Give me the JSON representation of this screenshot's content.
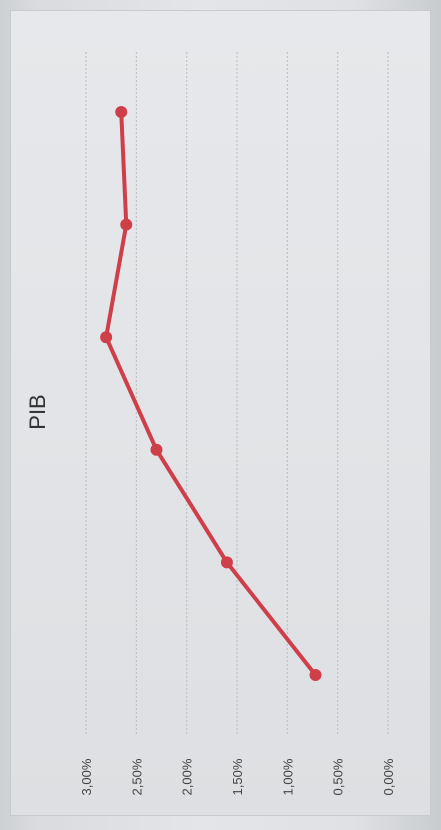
{
  "chart_data": {
    "type": "line",
    "orientation": "rotated-90-counterclockwise",
    "title": "PIB",
    "xlabel": "",
    "ylabel": "",
    "ylim": [
      0,
      3
    ],
    "y_ticks": [
      "0,00%",
      "0,50%",
      "1,00%",
      "1,50%",
      "2,00%",
      "2,50%",
      "3,00%"
    ],
    "categories": [
      "",
      "",
      "",
      "",
      "",
      ""
    ],
    "series": [
      {
        "color": "#cf3f4a",
        "values": [
          0.72,
          1.6,
          2.3,
          2.8,
          2.6,
          2.65
        ]
      }
    ],
    "grid": true,
    "legend": "none"
  }
}
